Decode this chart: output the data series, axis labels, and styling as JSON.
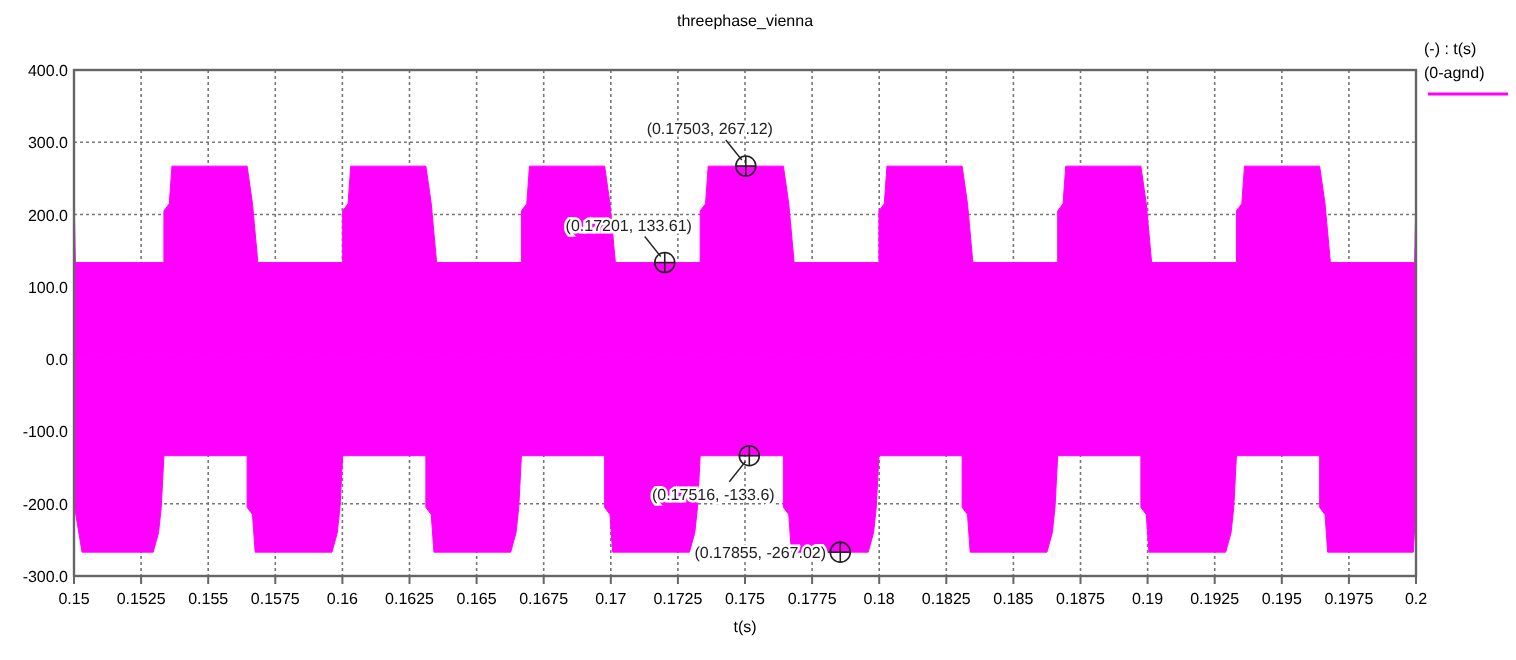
{
  "chart_data": {
    "type": "area",
    "title": "threephase_vienna",
    "xlabel": "t(s)",
    "legend_title": "(-) : t(s)",
    "legend": "top right",
    "grid": true,
    "line_style": "solid",
    "xlim": [
      0.15,
      0.2
    ],
    "xticks": [
      {
        "value": 0.15,
        "label": "0.15"
      },
      {
        "value": 0.1525,
        "label": "0.1525"
      },
      {
        "value": 0.155,
        "label": "0.155"
      },
      {
        "value": 0.1575,
        "label": "0.1575"
      },
      {
        "value": 0.16,
        "label": "0.16"
      },
      {
        "value": 0.1625,
        "label": "0.1625"
      },
      {
        "value": 0.165,
        "label": "0.165"
      },
      {
        "value": 0.1675,
        "label": "0.1675"
      },
      {
        "value": 0.17,
        "label": "0.17"
      },
      {
        "value": 0.1725,
        "label": "0.1725"
      },
      {
        "value": 0.175,
        "label": "0.175"
      },
      {
        "value": 0.1775,
        "label": "0.1775"
      },
      {
        "value": 0.18,
        "label": "0.18"
      },
      {
        "value": 0.1825,
        "label": "0.1825"
      },
      {
        "value": 0.185,
        "label": "0.185"
      },
      {
        "value": 0.1875,
        "label": "0.1875"
      },
      {
        "value": 0.19,
        "label": "0.19"
      },
      {
        "value": 0.1925,
        "label": "0.1925"
      },
      {
        "value": 0.195,
        "label": "0.195"
      },
      {
        "value": 0.1975,
        "label": "0.1975"
      },
      {
        "value": 0.2,
        "label": "0.2"
      }
    ],
    "ylim": [
      -300,
      400
    ],
    "yticks": [
      {
        "value": -300,
        "label": "-300.0"
      },
      {
        "value": -200,
        "label": "-200.0"
      },
      {
        "value": -100,
        "label": "-100.0"
      },
      {
        "value": 0,
        "label": "0.0"
      },
      {
        "value": 100,
        "label": "100.0"
      },
      {
        "value": 200,
        "label": "200.0"
      },
      {
        "value": 300,
        "label": "300.0"
      },
      {
        "value": 400,
        "label": "400.0"
      }
    ],
    "series": [
      {
        "name": "(0-agnd)",
        "color": "#ff00ff",
        "x": [
          0.15,
          0.15005,
          0.15335,
          0.15335,
          0.15355,
          0.15365,
          0.15645,
          0.15665,
          0.15685,
          0.16001,
          0.16001,
          0.16021,
          0.16031,
          0.16311,
          0.16331,
          0.16351,
          0.16667,
          0.16667,
          0.16687,
          0.16697,
          0.16977,
          0.16997,
          0.17017,
          0.17333,
          0.17333,
          0.17353,
          0.17363,
          0.17643,
          0.17663,
          0.17683,
          0.17999,
          0.17999,
          0.18019,
          0.18029,
          0.18309,
          0.18329,
          0.18349,
          0.18665,
          0.18665,
          0.18685,
          0.18695,
          0.18975,
          0.18995,
          0.19015,
          0.19331,
          0.19331,
          0.19351,
          0.19361,
          0.19641,
          0.19661,
          0.19681,
          0.19995,
          0.2
        ],
        "values": [
          235,
          133.6,
          133.6,
          205,
          215,
          267,
          267,
          215,
          133.6,
          133.6,
          205,
          215,
          267,
          267,
          215,
          133.6,
          133.6,
          205,
          215,
          267,
          267,
          215,
          133.6,
          133.6,
          205,
          215,
          267,
          267,
          215,
          133.6,
          133.6,
          205,
          215,
          267,
          267,
          215,
          133.6,
          133.6,
          205,
          215,
          267,
          267,
          215,
          133.6,
          133.6,
          205,
          215,
          267,
          267,
          215,
          133.6,
          133.6,
          230
        ]
      },
      {
        "color": "#ff00ff",
        "x": [
          0.15,
          0.1503,
          0.15295,
          0.15315,
          0.15325,
          0.15335,
          0.15645,
          0.15645,
          0.15665,
          0.15675,
          0.15961,
          0.15981,
          0.15991,
          0.16001,
          0.16311,
          0.16311,
          0.16331,
          0.16341,
          0.16627,
          0.16647,
          0.16657,
          0.16667,
          0.16977,
          0.16977,
          0.16997,
          0.17007,
          0.17293,
          0.17313,
          0.17323,
          0.17333,
          0.17643,
          0.17643,
          0.17663,
          0.17673,
          0.17959,
          0.17979,
          0.17989,
          0.17999,
          0.18309,
          0.18309,
          0.18329,
          0.18339,
          0.18625,
          0.18645,
          0.18655,
          0.18665,
          0.18975,
          0.18975,
          0.18995,
          0.19005,
          0.19291,
          0.19311,
          0.19321,
          0.19331,
          0.19641,
          0.19641,
          0.19661,
          0.19671,
          0.1999,
          0.2
        ],
        "values": [
          -200,
          -267,
          -267,
          -240,
          -205,
          -133.6,
          -133.6,
          -205,
          -215,
          -267,
          -267,
          -240,
          -205,
          -133.6,
          -133.6,
          -205,
          -215,
          -267,
          -267,
          -240,
          -205,
          -133.6,
          -133.6,
          -205,
          -215,
          -267,
          -267,
          -240,
          -205,
          -133.6,
          -133.6,
          -205,
          -215,
          -267,
          -267,
          -240,
          -205,
          -133.6,
          -133.6,
          -205,
          -215,
          -267,
          -267,
          -240,
          -205,
          -133.6,
          -133.6,
          -205,
          -215,
          -267,
          -267,
          -240,
          -205,
          -133.6,
          -133.6,
          -205,
          -215,
          -267,
          -267,
          -200
        ]
      }
    ],
    "annotations": [
      {
        "text": "(0.17503, 267.12)",
        "x": 0.17503,
        "y": 267.12
      },
      {
        "text": "(0.17201, 133.61)",
        "x": 0.17201,
        "y": 133.61
      },
      {
        "text": "(0.17516, -133.6)",
        "x": 0.17516,
        "y": -133.6
      },
      {
        "text": "(0.17855, -267.02)",
        "x": 0.17855,
        "y": -267.02
      }
    ]
  }
}
